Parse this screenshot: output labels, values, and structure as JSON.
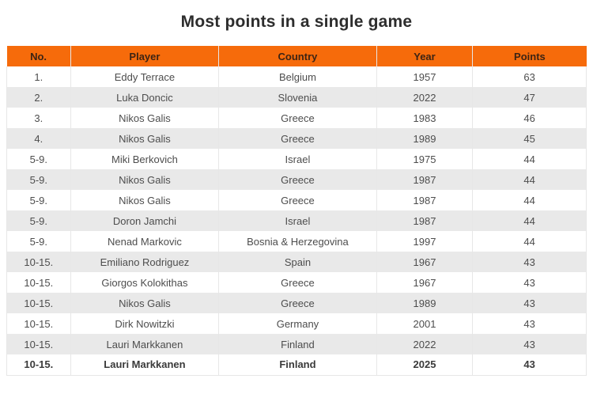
{
  "page": {
    "title": "Most points in a single game"
  },
  "table": {
    "columns": [
      {
        "key": "no",
        "label": "No."
      },
      {
        "key": "player",
        "label": "Player"
      },
      {
        "key": "country",
        "label": "Country"
      },
      {
        "key": "year",
        "label": "Year"
      },
      {
        "key": "points",
        "label": "Points"
      }
    ],
    "rows": [
      {
        "no": "1.",
        "player": "Eddy Terrace",
        "country": "Belgium",
        "year": "1957",
        "points": "63",
        "bold": false
      },
      {
        "no": "2.",
        "player": "Luka Doncic",
        "country": "Slovenia",
        "year": "2022",
        "points": "47",
        "bold": false
      },
      {
        "no": "3.",
        "player": "Nikos Galis",
        "country": "Greece",
        "year": "1983",
        "points": "46",
        "bold": false
      },
      {
        "no": "4.",
        "player": "Nikos Galis",
        "country": "Greece",
        "year": "1989",
        "points": "45",
        "bold": false
      },
      {
        "no": "5-9.",
        "player": "Miki Berkovich",
        "country": "Israel",
        "year": "1975",
        "points": "44",
        "bold": false
      },
      {
        "no": "5-9.",
        "player": "Nikos Galis",
        "country": "Greece",
        "year": "1987",
        "points": "44",
        "bold": false
      },
      {
        "no": "5-9.",
        "player": "Nikos Galis",
        "country": "Greece",
        "year": "1987",
        "points": "44",
        "bold": false
      },
      {
        "no": "5-9.",
        "player": "Doron Jamchi",
        "country": "Israel",
        "year": "1987",
        "points": "44",
        "bold": false
      },
      {
        "no": "5-9.",
        "player": "Nenad Markovic",
        "country": "Bosnia & Herzegovina",
        "year": "1997",
        "points": "44",
        "bold": false
      },
      {
        "no": "10-15.",
        "player": "Emiliano Rodriguez",
        "country": "Spain",
        "year": "1967",
        "points": "43",
        "bold": false
      },
      {
        "no": "10-15.",
        "player": "Giorgos Kolokithas",
        "country": "Greece",
        "year": "1967",
        "points": "43",
        "bold": false
      },
      {
        "no": "10-15.",
        "player": "Nikos Galis",
        "country": "Greece",
        "year": "1989",
        "points": "43",
        "bold": false
      },
      {
        "no": "10-15.",
        "player": "Dirk Nowitzki",
        "country": "Germany",
        "year": "2001",
        "points": "43",
        "bold": false
      },
      {
        "no": "10-15.",
        "player": "Lauri Markkanen",
        "country": "Finland",
        "year": "2022",
        "points": "43",
        "bold": false
      },
      {
        "no": "10-15.",
        "player": "Lauri Markkanen",
        "country": "Finland",
        "year": "2025",
        "points": "43",
        "bold": true
      }
    ],
    "colors": {
      "header_bg": "#f66b0b",
      "header_text": "#3d2414",
      "body_text": "#4d4d4d",
      "bold_text": "#3a3a3a",
      "row_alt_bg": "#e9e9e9",
      "border": "#e7e7e7"
    }
  },
  "chart_data": {
    "type": "table",
    "title": "Most points in a single game",
    "columns": [
      "No.",
      "Player",
      "Country",
      "Year",
      "Points"
    ],
    "rows": [
      [
        "1.",
        "Eddy Terrace",
        "Belgium",
        1957,
        63
      ],
      [
        "2.",
        "Luka Doncic",
        "Slovenia",
        2022,
        47
      ],
      [
        "3.",
        "Nikos Galis",
        "Greece",
        1983,
        46
      ],
      [
        "4.",
        "Nikos Galis",
        "Greece",
        1989,
        45
      ],
      [
        "5-9.",
        "Miki Berkovich",
        "Israel",
        1975,
        44
      ],
      [
        "5-9.",
        "Nikos Galis",
        "Greece",
        1987,
        44
      ],
      [
        "5-9.",
        "Nikos Galis",
        "Greece",
        1987,
        44
      ],
      [
        "5-9.",
        "Doron Jamchi",
        "Israel",
        1987,
        44
      ],
      [
        "5-9.",
        "Nenad Markovic",
        "Bosnia & Herzegovina",
        1997,
        44
      ],
      [
        "10-15.",
        "Emiliano Rodriguez",
        "Spain",
        1967,
        43
      ],
      [
        "10-15.",
        "Giorgos Kolokithas",
        "Greece",
        1967,
        43
      ],
      [
        "10-15.",
        "Nikos Galis",
        "Greece",
        1989,
        43
      ],
      [
        "10-15.",
        "Dirk Nowitzki",
        "Germany",
        2001,
        43
      ],
      [
        "10-15.",
        "Lauri Markkanen",
        "Finland",
        2022,
        43
      ],
      [
        "10-15.",
        "Lauri Markkanen",
        "Finland",
        2025,
        43
      ]
    ]
  }
}
